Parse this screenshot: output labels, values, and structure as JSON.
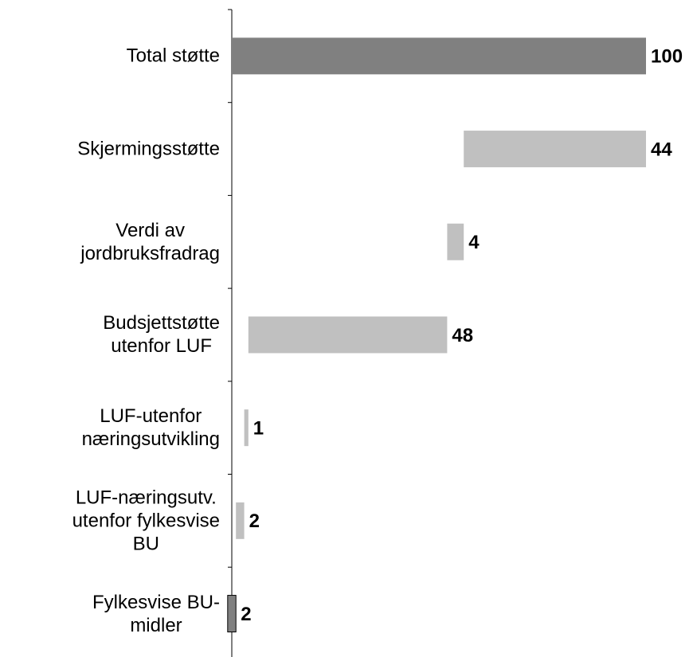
{
  "chart_data": {
    "type": "waterfall",
    "categories": [
      "Total støtte",
      "Skjermingsstøtte",
      "Verdi av\njordbruksfradrag",
      "Budsjettstøtte\nutenfor LUF",
      "LUF-utenfor\nnæringsutvikling",
      "LUF-næringsutv.\nutenfor fylkesvise\nBU",
      "Fylkesvise BU-\nmidler"
    ],
    "values": [
      100,
      44,
      4,
      48,
      1,
      2,
      2
    ],
    "colors": [
      "#808080",
      "#c0c0c0",
      "#c0c0c0",
      "#c0c0c0",
      "#c0c0c0",
      "#c0c0c0",
      "#808080"
    ]
  }
}
